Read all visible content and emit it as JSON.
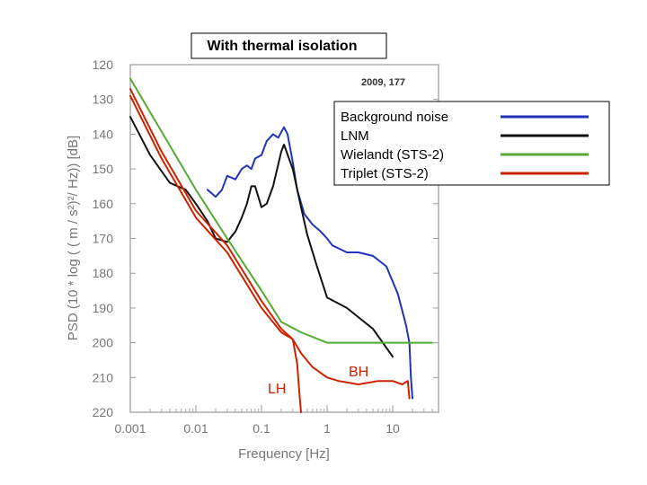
{
  "chart_data": {
    "type": "line",
    "title": "With thermal isolation",
    "annotation": "2009,  177",
    "xlabel": "Frequency   [Hz]",
    "ylabel": "PSD (10 * log ( ( m / s²)²/ Hz))   [dB]",
    "xscale": "log",
    "xlim": [
      0.001,
      40
    ],
    "ylim": [
      220,
      120
    ],
    "y_inverted": true,
    "x_ticks": [
      "0.001",
      "0.01",
      "0.1",
      "1",
      "10"
    ],
    "y_ticks": [
      "120",
      "130",
      "140",
      "150",
      "160",
      "170",
      "180",
      "190",
      "200",
      "210",
      "220"
    ],
    "legend_position": "top-right",
    "band_labels": [
      "LH",
      "BH"
    ],
    "series": [
      {
        "name": "Background noise",
        "color": "#2233bb",
        "points": [
          [
            0.015,
            156
          ],
          [
            0.02,
            158
          ],
          [
            0.025,
            156
          ],
          [
            0.03,
            152
          ],
          [
            0.04,
            153
          ],
          [
            0.05,
            150
          ],
          [
            0.06,
            149
          ],
          [
            0.07,
            150
          ],
          [
            0.08,
            147
          ],
          [
            0.1,
            146
          ],
          [
            0.12,
            142
          ],
          [
            0.15,
            140
          ],
          [
            0.18,
            141
          ],
          [
            0.22,
            138
          ],
          [
            0.25,
            140
          ],
          [
            0.3,
            148
          ],
          [
            0.35,
            156
          ],
          [
            0.45,
            163
          ],
          [
            0.6,
            166
          ],
          [
            0.8,
            168
          ],
          [
            1,
            170
          ],
          [
            1.2,
            172
          ],
          [
            2,
            174
          ],
          [
            3,
            174
          ],
          [
            5,
            175
          ],
          [
            8,
            178
          ],
          [
            12,
            186
          ],
          [
            16,
            195
          ],
          [
            18,
            200
          ],
          [
            19,
            210
          ],
          [
            20,
            216
          ]
        ]
      },
      {
        "name": "LNM",
        "color": "#111111",
        "points": [
          [
            0.001,
            135
          ],
          [
            0.002,
            146
          ],
          [
            0.004,
            154
          ],
          [
            0.007,
            156
          ],
          [
            0.01,
            160
          ],
          [
            0.015,
            165
          ],
          [
            0.02,
            170
          ],
          [
            0.03,
            171
          ],
          [
            0.04,
            168
          ],
          [
            0.05,
            164
          ],
          [
            0.06,
            160
          ],
          [
            0.07,
            155
          ],
          [
            0.08,
            155
          ],
          [
            0.1,
            161
          ],
          [
            0.12,
            160
          ],
          [
            0.15,
            155
          ],
          [
            0.2,
            145
          ],
          [
            0.22,
            143
          ],
          [
            0.3,
            150
          ],
          [
            0.4,
            161
          ],
          [
            0.5,
            169
          ],
          [
            0.7,
            178
          ],
          [
            1,
            187
          ],
          [
            2,
            190
          ],
          [
            5,
            196
          ],
          [
            10,
            204
          ]
        ]
      },
      {
        "name": "Wielandt (STS-2)",
        "color": "#55aa33",
        "points": [
          [
            0.001,
            124
          ],
          [
            0.01,
            156
          ],
          [
            0.03,
            170
          ],
          [
            0.1,
            185
          ],
          [
            0.2,
            194
          ],
          [
            0.4,
            197
          ],
          [
            1,
            200
          ],
          [
            10,
            200
          ],
          [
            40,
            200
          ]
        ]
      },
      {
        "name": "Triplet (STS-2)",
        "color": "#cc2200",
        "points": [
          [
            0.001,
            127
          ],
          [
            0.003,
            145
          ],
          [
            0.01,
            162
          ],
          [
            0.03,
            172
          ],
          [
            0.1,
            188
          ],
          [
            0.2,
            196
          ],
          [
            0.3,
            199
          ],
          [
            0.4,
            203
          ],
          [
            0.6,
            207
          ],
          [
            1,
            210
          ],
          [
            1.5,
            211
          ],
          [
            3,
            212
          ],
          [
            6,
            211
          ],
          [
            10,
            211
          ],
          [
            14,
            212
          ],
          [
            17,
            211
          ],
          [
            18,
            216
          ]
        ]
      },
      {
        "name": "",
        "color": "#cc2200",
        "points": [
          [
            0.001,
            129
          ],
          [
            0.003,
            147
          ],
          [
            0.01,
            164
          ],
          [
            0.03,
            174
          ],
          [
            0.1,
            190
          ],
          [
            0.2,
            197
          ],
          [
            0.3,
            199
          ],
          [
            0.35,
            206
          ],
          [
            0.38,
            215
          ],
          [
            0.4,
            220
          ]
        ]
      }
    ]
  }
}
